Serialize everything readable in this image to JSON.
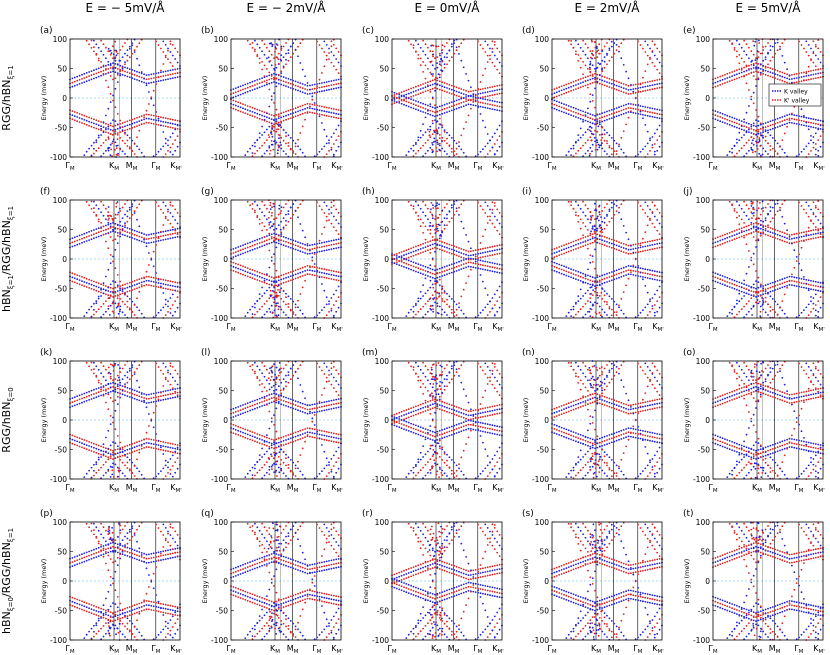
{
  "figure": {
    "column_titles": [
      "E = − 5mV/Å",
      "E = − 2mV/Å",
      "E = 0mV/Å",
      "E = 2mV/Å",
      "E = 5mV/Å"
    ],
    "row_labels": [
      {
        "base": "RGG/hBN",
        "sub": "ξ=1"
      },
      {
        "base": "hBN",
        "sub": "ξ=1",
        "mid": "/RGG/hBN",
        "sub2": "ξ=1"
      },
      {
        "base": "RGG/hBN",
        "sub": "ξ=0"
      },
      {
        "base": "hBN",
        "sub": "ξ=0",
        "mid": "/RGG/hBN",
        "sub2": "ξ=1"
      }
    ],
    "panel_letters": [
      "(a)",
      "(b)",
      "(c)",
      "(d)",
      "(e)",
      "(f)",
      "(g)",
      "(h)",
      "(i)",
      "(j)",
      "(k)",
      "(l)",
      "(m)",
      "(n)",
      "(o)",
      "(p)",
      "(q)",
      "(r)",
      "(s)",
      "(t)"
    ],
    "ylabel": "Energy (meV)",
    "xticks": [
      {
        "base": "Γ",
        "sub": "M"
      },
      {
        "base": "K",
        "sub": "M"
      },
      {
        "base": "M",
        "sub": "M"
      },
      {
        "base": "Γ",
        "sub": "M"
      },
      {
        "base": "K",
        "sub": "M'"
      }
    ],
    "yticks": [
      "100",
      "50",
      "0",
      "-50",
      "-100"
    ],
    "legend": {
      "k_label": "K valley",
      "kp_label": "K' valley"
    },
    "colors": {
      "k_valley": "#1f1fe0",
      "kp_valley": "#e01f1f",
      "fermi": "#87ceeb",
      "axis": "#000000"
    }
  },
  "chart_data": {
    "type": "scatter",
    "panels": 20,
    "grid": "5 columns (field E) x 4 rows (stacking)",
    "x_path": [
      "ΓM",
      "KM",
      "MM",
      "ΓM",
      "KM'"
    ],
    "ylim": [
      -100,
      100
    ],
    "yticks": [
      100,
      50,
      0,
      -50,
      -100
    ],
    "series": [
      {
        "name": "K valley"
      },
      {
        "name": "K' valley"
      }
    ],
    "legend_position": "right, panel (e)"
  }
}
